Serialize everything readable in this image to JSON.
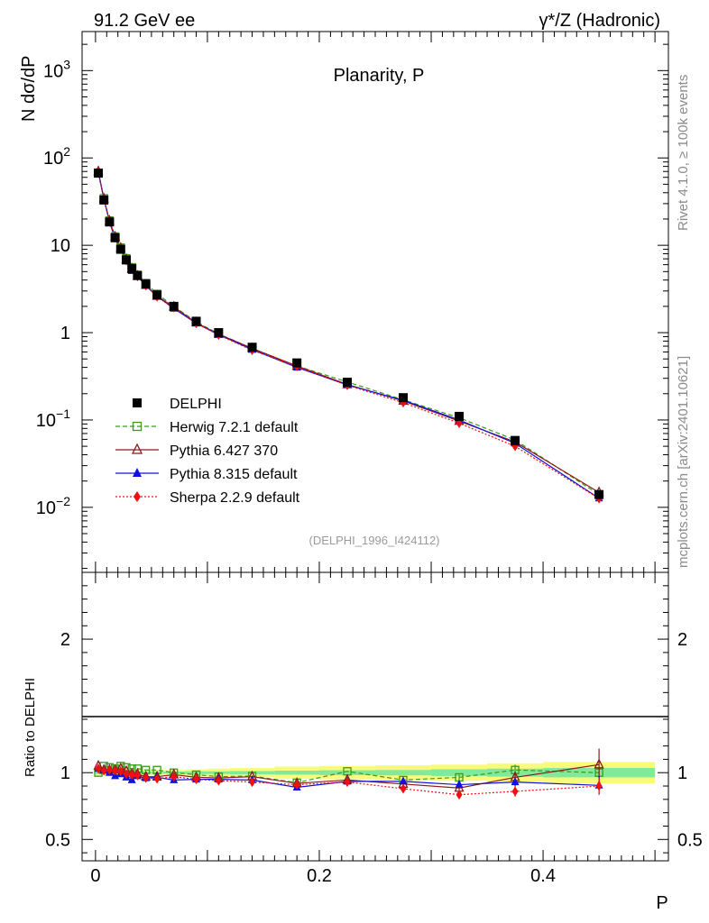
{
  "header": {
    "left": "91.2 GeV ee",
    "right": "γ*/Z (Hadronic)"
  },
  "side_text": {
    "rivet": "Rivet 4.1.0, ≥ 100k events",
    "source": "mcplots.cern.ch [arXiv:2401.10621]"
  },
  "watermark": "(DELPHI_1996_I424112)",
  "colors": {
    "data": "#000000",
    "herwig": "#3a9a1a",
    "pythia6": "#8b1a1a",
    "pythia8": "#1010e0",
    "sherpa": "#ee1010",
    "band_outer": "#fafa7a",
    "band_inner": "#80ea9a"
  },
  "chart_data": [
    {
      "type": "line",
      "name": "main",
      "title": "Planarity, P",
      "ylabel": "N  dσ/dP",
      "xlabel": "",
      "yscale": "log",
      "xlim": [
        -0.012,
        0.512
      ],
      "ylim": [
        0.0018,
        2800
      ],
      "yticks_major": [
        {
          "v": 0.01,
          "b": "10",
          "e": "−2"
        },
        {
          "v": 0.1,
          "b": "10",
          "e": "−1"
        },
        {
          "v": 1,
          "b": "1",
          "e": ""
        },
        {
          "v": 10,
          "b": "10",
          "e": ""
        },
        {
          "v": 100,
          "b": "10",
          "e": "2"
        },
        {
          "v": 1000,
          "b": "10",
          "e": "3"
        }
      ],
      "legend_position": "middle-left",
      "x": [
        0.0025,
        0.0075,
        0.0125,
        0.0175,
        0.0225,
        0.0275,
        0.0325,
        0.0375,
        0.045,
        0.055,
        0.07,
        0.09,
        0.11,
        0.14,
        0.18,
        0.225,
        0.275,
        0.325,
        0.375,
        0.45
      ],
      "series": [
        {
          "name": "DELPHI",
          "key": "data",
          "marker": "square",
          "line": "none",
          "values": [
            67,
            33,
            18.5,
            12.2,
            9.0,
            6.8,
            5.4,
            4.5,
            3.6,
            2.7,
            2.0,
            1.35,
            1.0,
            0.68,
            0.45,
            0.27,
            0.18,
            0.11,
            0.058,
            0.014
          ]
        },
        {
          "name": "Herwig 7.2.1 default",
          "key": "herwig",
          "marker": "open-square",
          "line": "dashed",
          "values": [
            67,
            34.5,
            19.2,
            12.6,
            9.4,
            7.1,
            5.6,
            4.6,
            3.7,
            2.78,
            2.0,
            1.33,
            0.97,
            0.66,
            0.415,
            0.273,
            0.17,
            0.106,
            0.059,
            0.014
          ]
        },
        {
          "name": "Pythia 6.427 370",
          "key": "pythia6",
          "marker": "open-triangle",
          "line": "solid",
          "values": [
            70,
            34,
            19.0,
            12.5,
            9.3,
            6.9,
            5.35,
            4.45,
            3.5,
            2.62,
            1.97,
            1.3,
            0.96,
            0.66,
            0.415,
            0.255,
            0.165,
            0.097,
            0.056,
            0.0148
          ]
        },
        {
          "name": "Pythia 8.315 default",
          "key": "pythia8",
          "marker": "triangle",
          "line": "solid",
          "values": [
            69,
            34,
            18.5,
            11.9,
            8.9,
            6.6,
            5.1,
            4.4,
            3.45,
            2.6,
            1.89,
            1.28,
            0.95,
            0.64,
            0.4,
            0.252,
            0.168,
            0.1,
            0.054,
            0.0127
          ]
        },
        {
          "name": "Sherpa 2.2.9 default",
          "key": "sherpa",
          "marker": "diamond",
          "line": "dotted",
          "values": [
            69,
            33.5,
            18.8,
            12.4,
            9.1,
            6.7,
            5.3,
            4.4,
            3.45,
            2.57,
            1.94,
            1.28,
            0.94,
            0.63,
            0.41,
            0.25,
            0.158,
            0.092,
            0.05,
            0.0126
          ]
        }
      ]
    },
    {
      "type": "line",
      "name": "ratio",
      "ylabel": "Ratio to DELPHI",
      "xlabel": "P",
      "ylim": [
        0.34,
        2.5
      ],
      "yticks_major": [
        0.5,
        1,
        2
      ],
      "ytick_labels": [
        "0.5",
        "1",
        "2"
      ],
      "xticks_major": [
        0,
        0.2,
        0.4
      ],
      "xtick_labels": [
        "0",
        "0.2",
        "0.4"
      ],
      "band": {
        "edges": [
          0,
          0.005,
          0.01,
          0.015,
          0.02,
          0.025,
          0.03,
          0.035,
          0.04,
          0.05,
          0.06,
          0.08,
          0.1,
          0.12,
          0.16,
          0.2,
          0.25,
          0.3,
          0.35,
          0.4,
          0.5
        ],
        "outer": [
          0.025,
          0.02,
          0.02,
          0.02,
          0.02,
          0.02,
          0.02,
          0.02,
          0.02,
          0.02,
          0.02,
          0.025,
          0.03,
          0.035,
          0.045,
          0.05,
          0.055,
          0.06,
          0.07,
          0.08
        ],
        "inner": [
          0.01,
          0.008,
          0.008,
          0.008,
          0.008,
          0.008,
          0.008,
          0.008,
          0.008,
          0.008,
          0.008,
          0.01,
          0.01,
          0.012,
          0.015,
          0.018,
          0.02,
          0.025,
          0.03,
          0.035
        ]
      },
      "x": [
        0.0025,
        0.0075,
        0.0125,
        0.0175,
        0.0225,
        0.0275,
        0.0325,
        0.0375,
        0.045,
        0.055,
        0.07,
        0.09,
        0.11,
        0.14,
        0.18,
        0.225,
        0.275,
        0.325,
        0.375,
        0.45
      ],
      "series": [
        {
          "name": "Herwig 7.2.1 default",
          "key": "herwig",
          "marker": "open-square",
          "line": "dashed",
          "values": [
            1.0,
            1.05,
            1.04,
            1.03,
            1.05,
            1.04,
            1.03,
            1.03,
            1.02,
            1.02,
            1.0,
            0.985,
            0.97,
            0.975,
            0.925,
            1.01,
            0.945,
            0.965,
            1.02,
            1.0
          ],
          "errors": [
            0,
            0,
            0,
            0,
            0,
            0,
            0,
            0,
            0,
            0,
            0,
            0,
            0,
            0,
            0,
            0,
            0,
            0.02,
            0.04,
            0.05
          ]
        },
        {
          "name": "Pythia 6.427 370",
          "key": "pythia6",
          "marker": "open-triangle",
          "line": "solid",
          "values": [
            1.05,
            1.02,
            1.02,
            1.02,
            1.03,
            1.01,
            0.99,
            0.99,
            0.97,
            0.97,
            0.985,
            0.965,
            0.96,
            0.97,
            0.92,
            0.945,
            0.915,
            0.885,
            0.965,
            1.06
          ],
          "errors": [
            0,
            0,
            0,
            0,
            0,
            0,
            0,
            0,
            0,
            0,
            0,
            0,
            0,
            0,
            0,
            0,
            0,
            0.02,
            0.04,
            0.12
          ]
        },
        {
          "name": "Pythia 8.315 default",
          "key": "pythia8",
          "marker": "triangle",
          "line": "solid",
          "values": [
            1.03,
            1.02,
            1.0,
            0.975,
            0.99,
            0.965,
            0.945,
            0.975,
            0.96,
            0.965,
            0.945,
            0.95,
            0.95,
            0.945,
            0.89,
            0.935,
            0.935,
            0.91,
            0.93,
            0.905
          ],
          "errors": [
            0,
            0,
            0,
            0,
            0,
            0,
            0,
            0,
            0,
            0,
            0,
            0,
            0,
            0,
            0,
            0,
            0,
            0.02,
            0.03,
            0.07
          ]
        },
        {
          "name": "Sherpa 2.2.9 default",
          "key": "sherpa",
          "marker": "diamond",
          "line": "dotted",
          "values": [
            1.03,
            1.015,
            1.02,
            1.015,
            1.01,
            0.99,
            0.985,
            0.98,
            0.96,
            0.955,
            0.97,
            0.95,
            0.94,
            0.93,
            0.91,
            0.93,
            0.88,
            0.835,
            0.86,
            0.9
          ],
          "errors": [
            0,
            0,
            0,
            0,
            0,
            0,
            0,
            0,
            0,
            0,
            0,
            0,
            0,
            0,
            0,
            0,
            0.02,
            0.03,
            0.04,
            0.06
          ]
        }
      ]
    }
  ]
}
